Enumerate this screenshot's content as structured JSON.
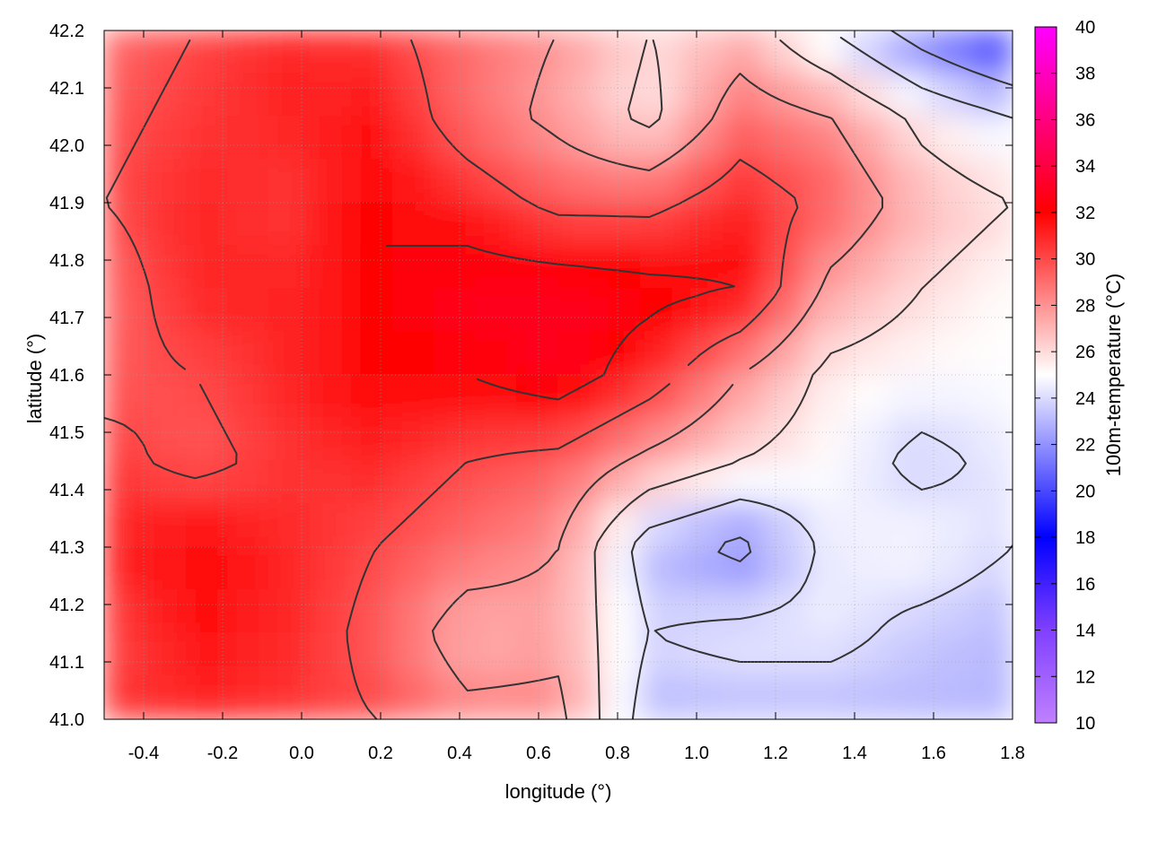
{
  "chart_data": {
    "type": "heatmap",
    "title": "",
    "xlabel": "longitude (°)",
    "ylabel": "latitude (°)",
    "xlim": [
      -0.5,
      1.8
    ],
    "ylim": [
      41.0,
      42.2
    ],
    "x_ticks": [
      -0.4,
      -0.2,
      0.0,
      0.2,
      0.4,
      0.6,
      0.8,
      1.0,
      1.2,
      1.4,
      1.6,
      1.8
    ],
    "x_tick_labels": [
      "-0.4",
      "-0.2",
      "0.0",
      "0.2",
      "0.4",
      "0.6",
      "0.8",
      "1.0",
      "1.2",
      "1.4",
      "1.6",
      "1.8"
    ],
    "y_ticks": [
      41.0,
      41.1,
      41.2,
      41.3,
      41.4,
      41.5,
      41.6,
      41.7,
      41.8,
      41.9,
      42.0,
      42.1,
      42.2
    ],
    "y_tick_labels": [
      "41.0",
      "41.1",
      "41.2",
      "41.3",
      "41.4",
      "41.5",
      "41.6",
      "41.7",
      "41.8",
      "41.9",
      "42.0",
      "42.1",
      "42.2"
    ],
    "grid": true,
    "colorbar": {
      "label": "100m-temperature (°C)",
      "range": [
        10,
        40
      ],
      "ticks": [
        10,
        12,
        14,
        16,
        18,
        20,
        22,
        24,
        26,
        28,
        30,
        32,
        34,
        36,
        38,
        40
      ],
      "tick_labels": [
        "10",
        "12",
        "14",
        "16",
        "18",
        "20",
        "22",
        "24",
        "26",
        "28",
        "30",
        "32",
        "34",
        "36",
        "38",
        "40"
      ],
      "stops": [
        {
          "value": 10,
          "color": "#c080ff"
        },
        {
          "value": 14,
          "color": "#8040ff"
        },
        {
          "value": 18,
          "color": "#0000ff"
        },
        {
          "value": 25,
          "color": "#ffffff"
        },
        {
          "value": 32,
          "color": "#ff0000"
        },
        {
          "value": 40,
          "color": "#ff00ff"
        }
      ]
    },
    "field": {
      "x": [
        -0.5,
        -0.27,
        -0.04,
        0.19,
        0.42,
        0.65,
        0.88,
        1.11,
        1.34,
        1.57,
        1.8
      ],
      "y": [
        42.2,
        42.05,
        41.9,
        41.75,
        41.6,
        41.45,
        41.3,
        41.15,
        41.0
      ],
      "values": [
        [
          29.0,
          30.0,
          31.0,
          30.5,
          29.0,
          28.0,
          26.0,
          27.0,
          24.0,
          21.0,
          18.5
        ],
        [
          29.5,
          30.5,
          31.0,
          31.5,
          29.0,
          27.5,
          25.5,
          29.0,
          28.0,
          25.5,
          24.0
        ],
        [
          30.0,
          31.0,
          30.5,
          32.0,
          31.0,
          29.5,
          29.5,
          31.0,
          29.5,
          27.0,
          26.0
        ],
        [
          29.0,
          31.0,
          31.0,
          32.0,
          33.0,
          33.0,
          32.5,
          32.0,
          27.5,
          26.0,
          25.0
        ],
        [
          29.5,
          30.0,
          31.0,
          32.0,
          32.0,
          33.0,
          31.0,
          28.0,
          25.5,
          25.0,
          25.0
        ],
        [
          30.5,
          29.5,
          30.5,
          31.0,
          30.0,
          29.5,
          27.5,
          26.0,
          25.0,
          23.5,
          24.5
        ],
        [
          31.0,
          32.0,
          31.0,
          30.0,
          29.0,
          28.0,
          23.0,
          21.5,
          24.5,
          25.0,
          24.0
        ],
        [
          30.0,
          31.5,
          31.0,
          29.5,
          27.0,
          27.5,
          24.0,
          24.5,
          24.5,
          23.5,
          23.0
        ],
        [
          30.5,
          31.0,
          30.5,
          30.0,
          28.5,
          28.5,
          23.0,
          23.0,
          23.0,
          23.0,
          23.0
        ]
      ]
    },
    "contour_color": "#333333"
  }
}
